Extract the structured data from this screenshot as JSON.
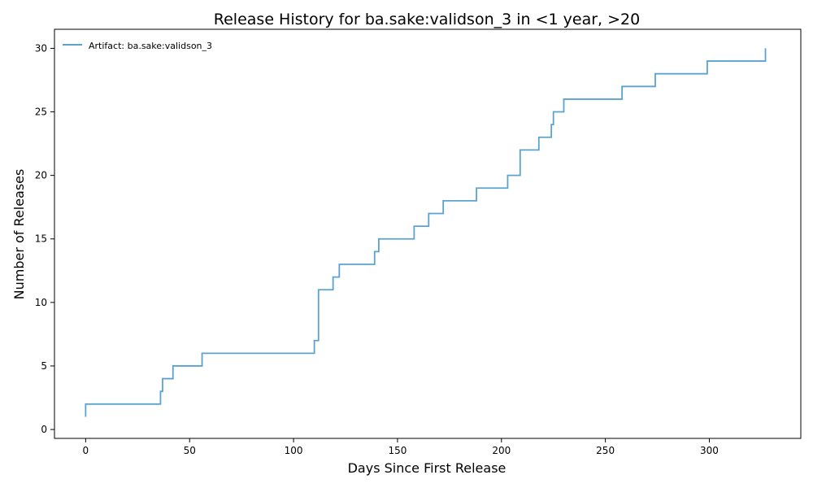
{
  "chart_data": {
    "type": "line",
    "title": "Release History for ba.sake:validson_3 in <1 year, >20",
    "xlabel": "Days Since First Release",
    "ylabel": "Number of Releases",
    "xlim": [
      -15,
      344
    ],
    "ylim": [
      -0.7,
      31.5
    ],
    "xticks": [
      0,
      50,
      100,
      150,
      200,
      250,
      300
    ],
    "yticks": [
      0,
      5,
      10,
      15,
      20,
      25,
      30
    ],
    "grid": false,
    "legend_position": "top-left",
    "step": "post",
    "series": [
      {
        "name": "Artifact: ba.sake:validson_3",
        "color": "#5ba3cf",
        "x": [
          0,
          0,
          36,
          36,
          37,
          42,
          56,
          110,
          111,
          112,
          119,
          120,
          122,
          139,
          140,
          141,
          158,
          165,
          172,
          188,
          203,
          209,
          218,
          224,
          225,
          230,
          258,
          274,
          299,
          327,
          327
        ],
        "y": [
          1,
          2,
          2,
          3,
          4,
          5,
          6,
          7,
          7,
          11,
          12,
          12,
          13,
          14,
          14,
          15,
          16,
          17,
          18,
          19,
          20,
          22,
          23,
          24,
          25,
          26,
          27,
          28,
          29,
          29,
          30
        ]
      }
    ]
  }
}
